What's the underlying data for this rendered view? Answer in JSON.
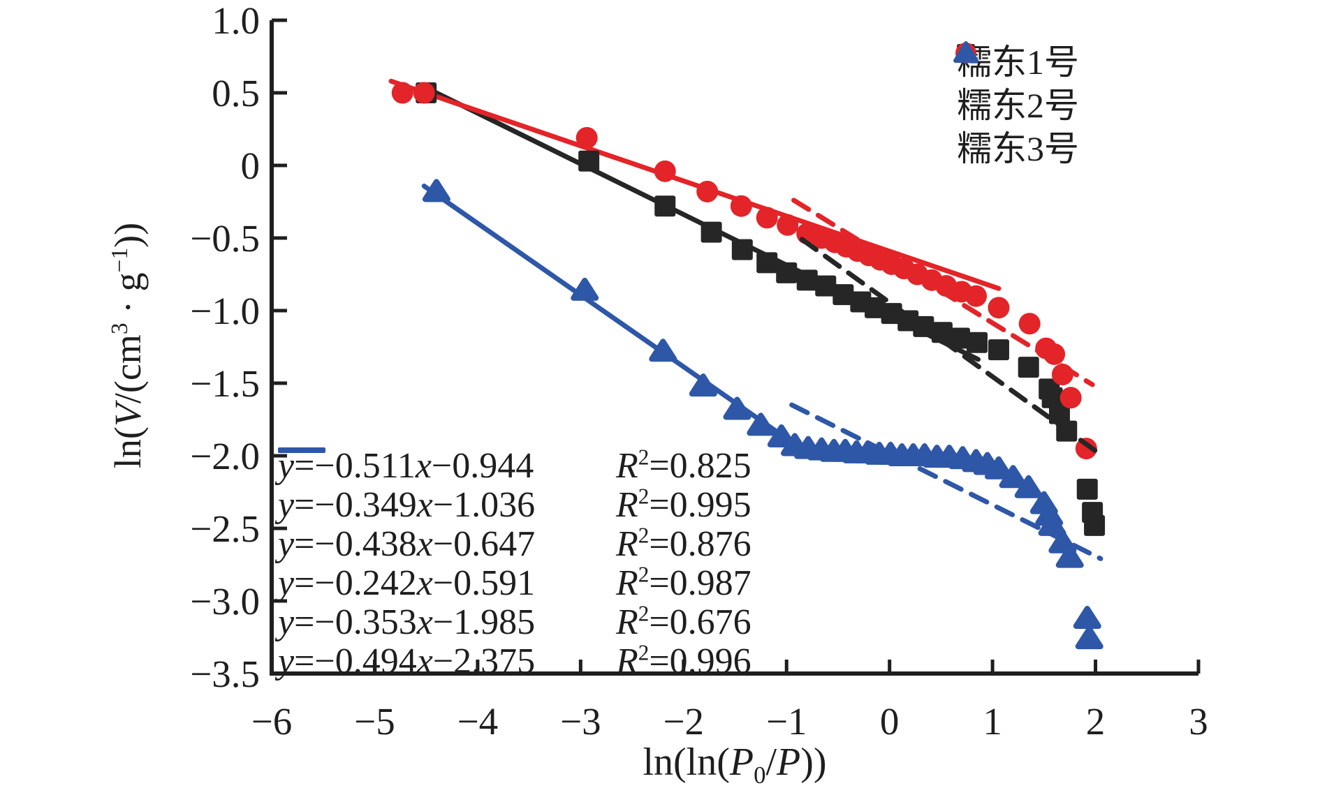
{
  "colors": {
    "black": "#262626",
    "red": "#e32428",
    "blue": "#2e57a8",
    "axis": "#1f1f1f"
  },
  "chart_data": {
    "type": "scatter",
    "xlabel": "ln(ln(P0/P))",
    "ylabel": "ln(V/(cm3·g−1))",
    "xlabel_tokens": [
      {
        "t": "ln(ln(",
        "s": "n"
      },
      {
        "t": "P",
        "s": "i"
      },
      {
        "t": "0",
        "s": "sub"
      },
      {
        "t": "/",
        "s": "n"
      },
      {
        "t": "P",
        "s": "i"
      },
      {
        "t": "))",
        "s": "n"
      }
    ],
    "ylabel_tokens": [
      {
        "t": "ln(",
        "s": "n"
      },
      {
        "t": "V",
        "s": "i"
      },
      {
        "t": "/(cm",
        "s": "n"
      },
      {
        "t": "3",
        "s": "sup"
      },
      {
        "t": " · ",
        "s": "n"
      },
      {
        "t": "g",
        "s": "n"
      },
      {
        "t": "−1",
        "s": "sup"
      },
      {
        "t": "))",
        "s": "n"
      }
    ],
    "xlim": [
      -6,
      3
    ],
    "ylim": [
      -3.5,
      1.0
    ],
    "grid": false,
    "legend_position": "top-right",
    "x_ticks": [
      {
        "v": -6,
        "label": "−6"
      },
      {
        "v": -5,
        "label": "−5"
      },
      {
        "v": -4,
        "label": "−4"
      },
      {
        "v": -3,
        "label": "−3"
      },
      {
        "v": -2,
        "label": "−2"
      },
      {
        "v": -1,
        "label": "−1"
      },
      {
        "v": 0,
        "label": "0"
      },
      {
        "v": 1,
        "label": "1"
      },
      {
        "v": 2,
        "label": "2"
      },
      {
        "v": 3,
        "label": "3"
      }
    ],
    "y_ticks": [
      {
        "v": 1.0,
        "label": "1.0"
      },
      {
        "v": 0.5,
        "label": "0.5"
      },
      {
        "v": 0,
        "label": "0"
      },
      {
        "v": -0.5,
        "label": "−0.5"
      },
      {
        "v": -1.0,
        "label": "−1.0"
      },
      {
        "v": -1.5,
        "label": "−1.5"
      },
      {
        "v": -2.0,
        "label": "−2.0"
      },
      {
        "v": -2.5,
        "label": "−2.5"
      },
      {
        "v": -3.0,
        "label": "−3.0"
      },
      {
        "v": -3.5,
        "label": "−3.5"
      }
    ],
    "series": [
      {
        "name": "糯东1号",
        "marker": "square",
        "color": "black",
        "points": [
          [
            -4.5,
            0.5
          ],
          [
            -2.92,
            0.03
          ],
          [
            -2.18,
            -0.28
          ],
          [
            -1.73,
            -0.46
          ],
          [
            -1.43,
            -0.58
          ],
          [
            -1.19,
            -0.67
          ],
          [
            -1.0,
            -0.74
          ],
          [
            -0.8,
            -0.79
          ],
          [
            -0.62,
            -0.83
          ],
          [
            -0.45,
            -0.89
          ],
          [
            -0.28,
            -0.94
          ],
          [
            -0.14,
            -0.98
          ],
          [
            0.02,
            -1.02
          ],
          [
            0.18,
            -1.07
          ],
          [
            0.33,
            -1.11
          ],
          [
            0.51,
            -1.15
          ],
          [
            0.68,
            -1.19
          ],
          [
            0.85,
            -1.22
          ],
          [
            1.06,
            -1.27
          ],
          [
            1.35,
            -1.39
          ],
          [
            1.55,
            -1.54
          ],
          [
            1.58,
            -1.6
          ],
          [
            1.65,
            -1.71
          ],
          [
            1.72,
            -1.83
          ],
          [
            1.92,
            -2.23
          ],
          [
            1.97,
            -2.39
          ],
          [
            1.99,
            -2.48
          ]
        ]
      },
      {
        "name": "糯东2号",
        "marker": "circle",
        "color": "red",
        "points": [
          [
            -4.73,
            0.5
          ],
          [
            -4.52,
            0.5
          ],
          [
            -2.94,
            0.19
          ],
          [
            -2.18,
            -0.04
          ],
          [
            -1.77,
            -0.18
          ],
          [
            -1.44,
            -0.28
          ],
          [
            -1.19,
            -0.36
          ],
          [
            -0.99,
            -0.41
          ],
          [
            -0.8,
            -0.47
          ],
          [
            -0.66,
            -0.5
          ],
          [
            -0.53,
            -0.53
          ],
          [
            -0.42,
            -0.56
          ],
          [
            -0.31,
            -0.59
          ],
          [
            -0.2,
            -0.62
          ],
          [
            -0.09,
            -0.65
          ],
          [
            0.02,
            -0.68
          ],
          [
            0.14,
            -0.71
          ],
          [
            0.27,
            -0.75
          ],
          [
            0.41,
            -0.79
          ],
          [
            0.55,
            -0.83
          ],
          [
            0.7,
            -0.87
          ],
          [
            0.84,
            -0.9
          ],
          [
            1.06,
            -0.98
          ],
          [
            1.36,
            -1.09
          ],
          [
            1.52,
            -1.26
          ],
          [
            1.6,
            -1.3
          ],
          [
            1.68,
            -1.44
          ],
          [
            1.76,
            -1.6
          ],
          [
            1.91,
            -1.95
          ]
        ]
      },
      {
        "name": "糯东3号",
        "marker": "triangle",
        "color": "blue",
        "points": [
          [
            -4.4,
            -0.18
          ],
          [
            -2.96,
            -0.86
          ],
          [
            -2.2,
            -1.28
          ],
          [
            -1.81,
            -1.52
          ],
          [
            -1.48,
            -1.68
          ],
          [
            -1.25,
            -1.79
          ],
          [
            -1.05,
            -1.87
          ],
          [
            -0.92,
            -1.93
          ],
          [
            -0.79,
            -1.95
          ],
          [
            -0.66,
            -1.96
          ],
          [
            -0.54,
            -1.97
          ],
          [
            -0.43,
            -1.97
          ],
          [
            -0.32,
            -1.98
          ],
          [
            -0.21,
            -1.98
          ],
          [
            -0.1,
            -1.99
          ],
          [
            0.01,
            -1.99
          ],
          [
            0.12,
            -2.0
          ],
          [
            0.23,
            -2.0
          ],
          [
            0.34,
            -2.0
          ],
          [
            0.46,
            -2.01
          ],
          [
            0.58,
            -2.01
          ],
          [
            0.71,
            -2.02
          ],
          [
            0.84,
            -2.04
          ],
          [
            0.95,
            -2.06
          ],
          [
            1.06,
            -2.09
          ],
          [
            1.2,
            -2.15
          ],
          [
            1.35,
            -2.22
          ],
          [
            1.5,
            -2.33
          ],
          [
            1.55,
            -2.41
          ],
          [
            1.58,
            -2.48
          ],
          [
            1.68,
            -2.6
          ],
          [
            1.75,
            -2.7
          ],
          [
            1.92,
            -3.12
          ],
          [
            1.94,
            -3.26
          ]
        ]
      }
    ],
    "fits": [
      {
        "color": "black",
        "style": "dashed",
        "slope": -0.511,
        "intercept": -0.944,
        "x1": -0.85,
        "x2": 2.02,
        "slope_label": "−0.511",
        "intercept_label": "−0.944",
        "r2_label": "0.825"
      },
      {
        "color": "black",
        "style": "solid",
        "slope": -0.349,
        "intercept": -1.036,
        "x1": -4.56,
        "x2": 0.86,
        "slope_label": "−0.349",
        "intercept_label": "−1.036",
        "r2_label": "0.995"
      },
      {
        "color": "red",
        "style": "dashed",
        "slope": -0.438,
        "intercept": -0.647,
        "x1": -0.93,
        "x2": 1.97,
        "slope_label": "−0.438",
        "intercept_label": "−0.647",
        "r2_label": "0.876"
      },
      {
        "color": "red",
        "style": "solid",
        "slope": -0.242,
        "intercept": -0.591,
        "x1": -4.84,
        "x2": 1.06,
        "slope_label": "−0.242",
        "intercept_label": "−0.591",
        "r2_label": "0.987"
      },
      {
        "color": "blue",
        "style": "dashed",
        "slope": -0.353,
        "intercept": -1.985,
        "x1": -0.95,
        "x2": 2.05,
        "slope_label": "−0.353",
        "intercept_label": "−1.985",
        "r2_label": "0.676"
      },
      {
        "color": "blue",
        "style": "solid",
        "slope": -0.494,
        "intercept": -2.375,
        "x1": -4.52,
        "x2": -0.89,
        "slope_label": "−0.494",
        "intercept_label": "−2.375",
        "r2_label": "0.996"
      }
    ],
    "equation_lhs": "y",
    "equation_xvar": "x",
    "equation_rvar": "R",
    "equation_rsup": "2",
    "legend": [
      {
        "label": "糯东1号",
        "marker": "square",
        "color": "black"
      },
      {
        "label": "糯东2号",
        "marker": "circle",
        "color": "red"
      },
      {
        "label": "糯东3号",
        "marker": "triangle",
        "color": "blue"
      }
    ]
  }
}
